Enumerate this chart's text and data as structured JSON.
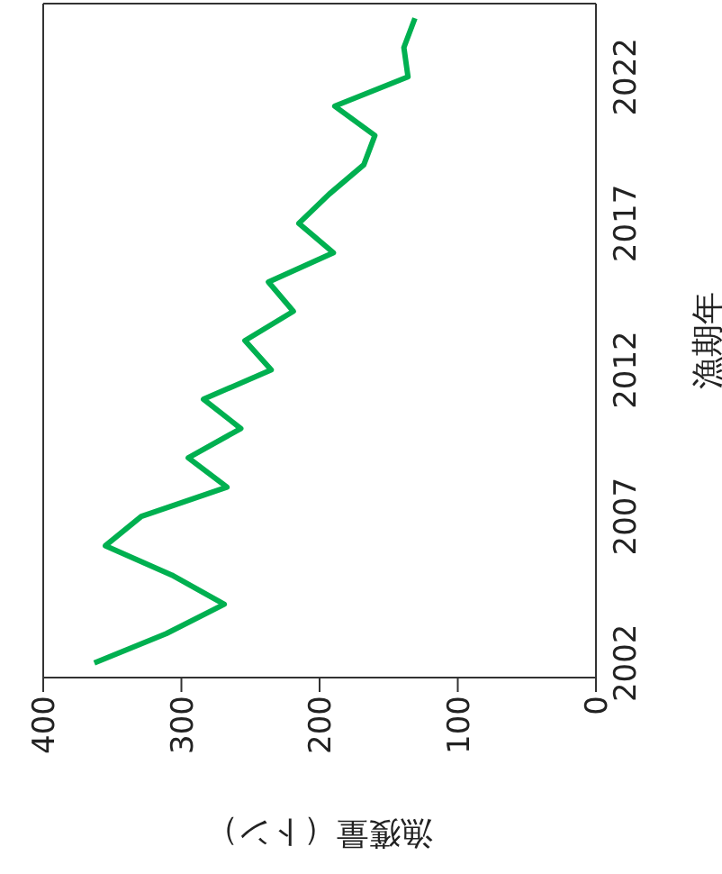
{
  "chart_data": {
    "type": "line",
    "orientation": "horizontal",
    "xlabel": "漁獲量（トン）",
    "ylabel": "漁期年",
    "x": [
      2002,
      2003,
      2004,
      2005,
      2006,
      2007,
      2008,
      2009,
      2010,
      2011,
      2012,
      2013,
      2014,
      2015,
      2016,
      2017,
      2018,
      2019,
      2020,
      2021,
      2022,
      2023,
      2024
    ],
    "series": [
      {
        "color": "#00b050",
        "values": [
          363,
          311,
          269,
          307,
          355,
          329,
          267,
          295,
          257,
          284,
          235,
          254,
          219,
          237,
          190,
          215,
          193,
          168,
          160,
          189,
          136,
          139,
          131
        ]
      }
    ],
    "ylim": [
      2001.5,
      2024.5
    ],
    "yticks": [
      2002,
      2007,
      2012,
      2017,
      2022
    ],
    "xlim": [
      400,
      0
    ],
    "xticks": [
      0,
      100,
      200,
      300,
      400
    ],
    "grid": false,
    "legend": false,
    "line_style": "solid"
  }
}
